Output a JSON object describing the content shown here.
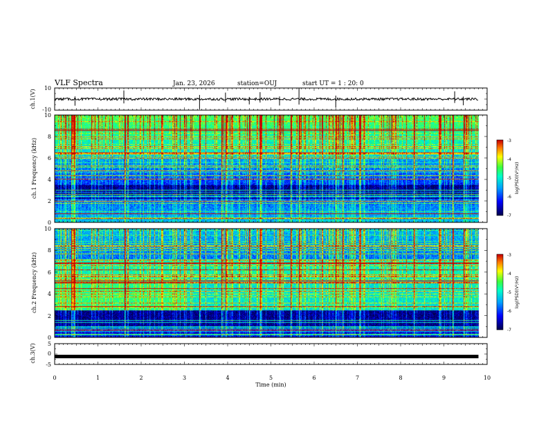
{
  "header": {
    "title": "VLF Spectra",
    "date": "Jan. 23, 2026",
    "station": "station=OUJ",
    "start": "start UT =  1 : 20: 0"
  },
  "colors": {
    "spec_low": "#000050",
    "spec_mid": "#00ff80",
    "spec_high": "#ff0000",
    "trace": "#000000"
  },
  "chart_data": [
    {
      "id": "ch1-waveform",
      "type": "line",
      "ylabel": "ch.1(V)",
      "ylim": [
        -10,
        10
      ],
      "yticks": [
        "10",
        "-10"
      ],
      "baseline": 0,
      "spikes_min": [
        0.47,
        1.6,
        3.35,
        3.95,
        4.5,
        4.75,
        5.2,
        5.65,
        6.5,
        9.25,
        9.45
      ]
    },
    {
      "id": "ch1-spectrogram",
      "type": "heatmap",
      "ylabel": "ch.1 Frequency (kHz)",
      "ylim": [
        0,
        10
      ],
      "yticks": [
        "0",
        "2",
        "4",
        "6",
        "8",
        "10"
      ],
      "colorbar_label": "log(PSD)(V²/Hz)",
      "colorbar_ticks": [
        "-3",
        "-4",
        "-5",
        "-6",
        "-7"
      ],
      "crange": [
        -7,
        -3
      ]
    },
    {
      "id": "ch2-spectrogram",
      "type": "heatmap",
      "ylabel": "ch.2 Frequency (kHz)",
      "ylim": [
        0,
        10
      ],
      "yticks": [
        "0",
        "2",
        "4",
        "6",
        "8",
        "10"
      ],
      "colorbar_label": "log(PSD)(V²/Hz)",
      "colorbar_ticks": [
        "-3",
        "-4",
        "-5",
        "-6",
        "-7"
      ],
      "crange": [
        -7,
        -3
      ]
    },
    {
      "id": "ch3-waveform",
      "type": "line",
      "ylabel": "ch.3(V)",
      "ylim": [
        -5,
        5
      ],
      "yticks": [
        "5",
        "0",
        "-5"
      ],
      "baseline": -1.2
    }
  ],
  "xaxis": {
    "label": "Time (min)",
    "ticks": [
      "0",
      "1",
      "2",
      "3",
      "4",
      "5",
      "6",
      "7",
      "8",
      "9",
      "10"
    ],
    "xlim": [
      0,
      10
    ],
    "data_end": 9.8
  }
}
